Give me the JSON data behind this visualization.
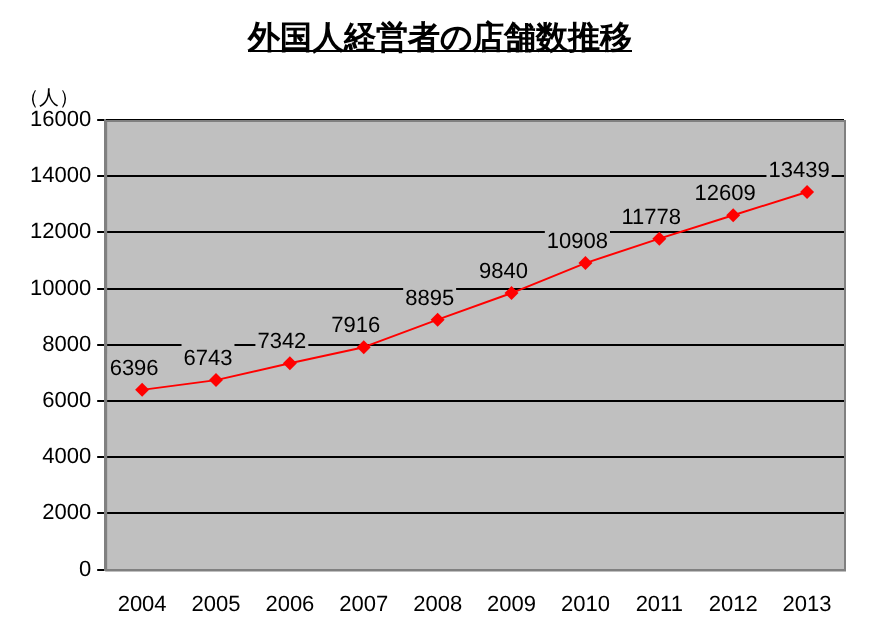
{
  "chart_data": {
    "type": "line",
    "title": "外国人経営者の店舗数推移",
    "ylabel": "（人）",
    "categories": [
      "2004",
      "2005",
      "2006",
      "2007",
      "2008",
      "2009",
      "2010",
      "2011",
      "2012",
      "2013"
    ],
    "series": [
      {
        "color": "#ff0000",
        "values": [
          6396,
          6743,
          7342,
          7916,
          8895,
          9840,
          10908,
          11778,
          12609,
          13439
        ]
      }
    ],
    "ylim": [
      0,
      16000
    ],
    "yticks": [
      0,
      2000,
      4000,
      6000,
      8000,
      10000,
      12000,
      14000,
      16000
    ],
    "grid": "y",
    "legend": false,
    "marker": "diamond",
    "line_style": "solid",
    "data_labels": true
  }
}
